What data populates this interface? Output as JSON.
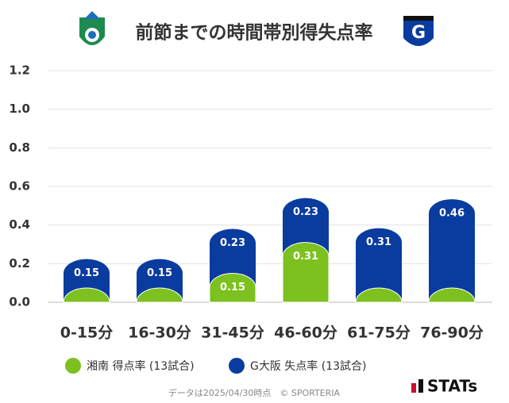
{
  "chart_data": {
    "type": "bar",
    "title": "前節までの時間帯別得失点率",
    "categories": [
      "0-15分",
      "16-30分",
      "31-45分",
      "46-60分",
      "61-75分",
      "76-90分"
    ],
    "series": [
      {
        "name": "湘南 得点率 (13試合)",
        "color": "#7cc11f",
        "values": [
          0,
          0,
          0.15,
          0.31,
          0,
          0
        ]
      },
      {
        "name": "G大阪 失点率 (13試合)",
        "color": "#0a3c9f",
        "values": [
          0.15,
          0.15,
          0.23,
          0.23,
          0.31,
          0.46
        ]
      }
    ],
    "ylim": [
      0,
      1.2
    ],
    "yticks": [
      {
        "value": 0,
        "label": "0.0"
      },
      0.2,
      0.4,
      0.6,
      0.8,
      {
        "value": 1,
        "label": "1.0"
      },
      1.2
    ],
    "grid": true,
    "stacked": true,
    "footer": "データは2025/04/30時点　© SPORTERIA",
    "brand": "STATs"
  }
}
